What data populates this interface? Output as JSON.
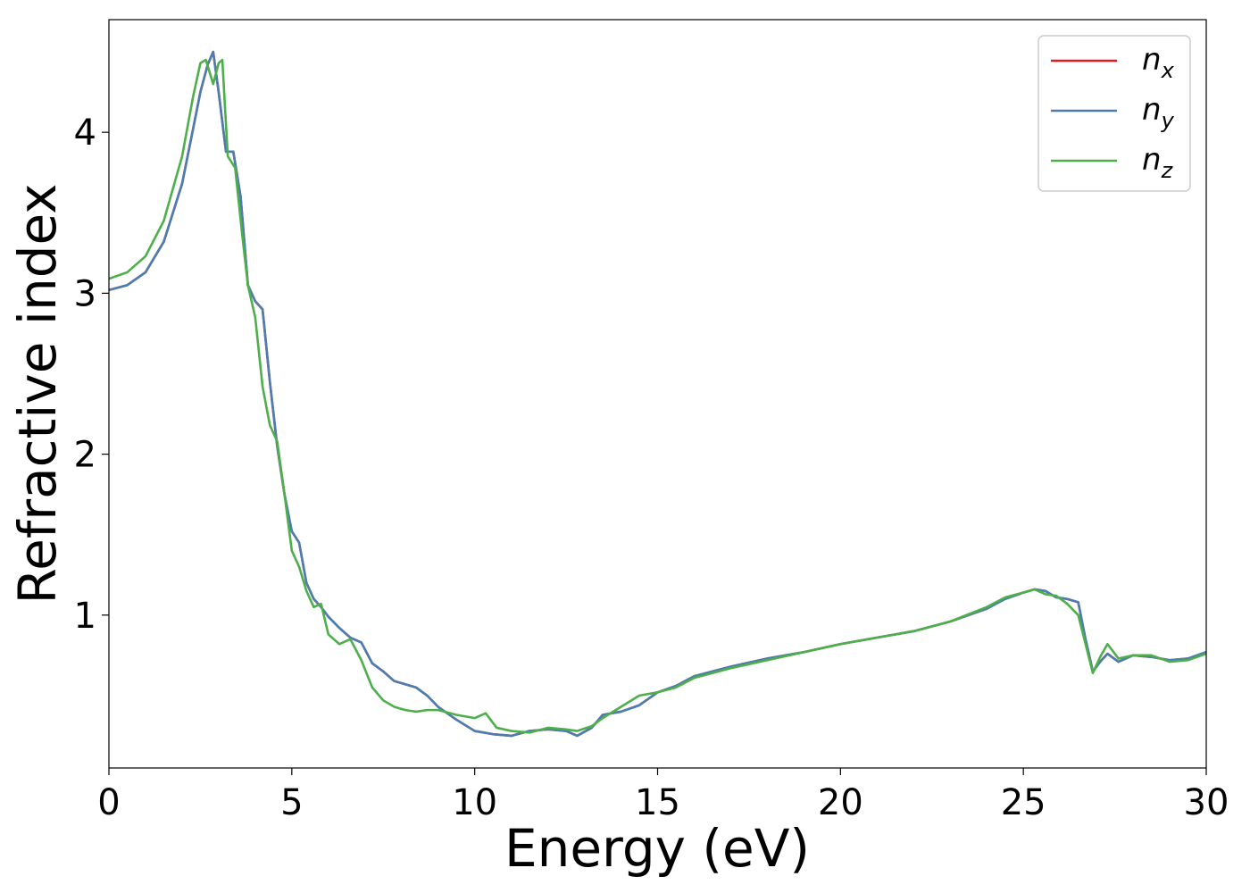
{
  "chart_data": {
    "type": "line",
    "xlabel": "Energy (eV)",
    "ylabel": "Refractive index",
    "xlim": [
      0,
      30
    ],
    "ylim": [
      0.05,
      4.7
    ],
    "xticks": [
      0,
      5,
      10,
      15,
      20,
      25,
      30
    ],
    "yticks": [
      1,
      2,
      3,
      4
    ],
    "grid": false,
    "legend_position": "top-right",
    "series": [
      {
        "name": "n_x",
        "legend_base": "n",
        "legend_sub": "x",
        "color": "#e41a1c",
        "x": [
          0,
          0.5,
          1.0,
          1.5,
          2.0,
          2.3,
          2.5,
          2.7,
          2.85,
          3.0,
          3.2,
          3.4,
          3.6,
          3.8,
          4.0,
          4.2,
          4.4,
          4.6,
          4.8,
          5.0,
          5.2,
          5.4,
          5.6,
          5.8,
          6.0,
          6.3,
          6.6,
          6.9,
          7.2,
          7.5,
          7.8,
          8.1,
          8.4,
          8.7,
          9.0,
          9.5,
          10.0,
          10.5,
          11.0,
          11.5,
          12.0,
          12.5,
          12.8,
          13.2,
          13.5,
          14.0,
          14.5,
          15.0,
          15.5,
          16.0,
          17.0,
          18.0,
          19.0,
          20.0,
          21.0,
          22.0,
          23.0,
          24.0,
          24.5,
          25.0,
          25.3,
          25.6,
          25.9,
          26.2,
          26.5,
          26.7,
          26.9,
          27.1,
          27.3,
          27.6,
          28.0,
          28.5,
          29.0,
          29.5,
          30.0
        ],
        "values": [
          3.02,
          3.05,
          3.13,
          3.32,
          3.68,
          4.02,
          4.25,
          4.42,
          4.5,
          4.25,
          3.88,
          3.88,
          3.6,
          3.05,
          2.95,
          2.9,
          2.45,
          2.05,
          1.75,
          1.52,
          1.45,
          1.2,
          1.1,
          1.05,
          0.99,
          0.92,
          0.86,
          0.83,
          0.7,
          0.65,
          0.59,
          0.57,
          0.55,
          0.5,
          0.43,
          0.35,
          0.28,
          0.26,
          0.25,
          0.28,
          0.29,
          0.28,
          0.25,
          0.3,
          0.38,
          0.4,
          0.44,
          0.52,
          0.56,
          0.62,
          0.68,
          0.73,
          0.77,
          0.82,
          0.86,
          0.9,
          0.96,
          1.04,
          1.1,
          1.14,
          1.16,
          1.15,
          1.11,
          1.1,
          1.08,
          0.85,
          0.65,
          0.71,
          0.76,
          0.71,
          0.75,
          0.74,
          0.72,
          0.73,
          0.77
        ]
      },
      {
        "name": "n_y",
        "legend_base": "n",
        "legend_sub": "y",
        "color": "#4a7eb3",
        "x": [
          0,
          0.5,
          1.0,
          1.5,
          2.0,
          2.3,
          2.5,
          2.7,
          2.85,
          3.0,
          3.2,
          3.4,
          3.6,
          3.8,
          4.0,
          4.2,
          4.4,
          4.6,
          4.8,
          5.0,
          5.2,
          5.4,
          5.6,
          5.8,
          6.0,
          6.3,
          6.6,
          6.9,
          7.2,
          7.5,
          7.8,
          8.1,
          8.4,
          8.7,
          9.0,
          9.5,
          10.0,
          10.5,
          11.0,
          11.5,
          12.0,
          12.5,
          12.8,
          13.2,
          13.5,
          14.0,
          14.5,
          15.0,
          15.5,
          16.0,
          17.0,
          18.0,
          19.0,
          20.0,
          21.0,
          22.0,
          23.0,
          24.0,
          24.5,
          25.0,
          25.3,
          25.6,
          25.9,
          26.2,
          26.5,
          26.7,
          26.9,
          27.1,
          27.3,
          27.6,
          28.0,
          28.5,
          29.0,
          29.5,
          30.0
        ],
        "values": [
          3.02,
          3.05,
          3.13,
          3.32,
          3.68,
          4.02,
          4.25,
          4.42,
          4.5,
          4.25,
          3.88,
          3.88,
          3.6,
          3.05,
          2.95,
          2.9,
          2.45,
          2.05,
          1.75,
          1.52,
          1.45,
          1.2,
          1.1,
          1.05,
          0.99,
          0.92,
          0.86,
          0.83,
          0.7,
          0.65,
          0.59,
          0.57,
          0.55,
          0.5,
          0.43,
          0.35,
          0.28,
          0.26,
          0.25,
          0.28,
          0.29,
          0.28,
          0.25,
          0.3,
          0.38,
          0.4,
          0.44,
          0.52,
          0.56,
          0.62,
          0.68,
          0.73,
          0.77,
          0.82,
          0.86,
          0.9,
          0.96,
          1.04,
          1.1,
          1.14,
          1.16,
          1.15,
          1.11,
          1.1,
          1.08,
          0.85,
          0.65,
          0.71,
          0.76,
          0.71,
          0.75,
          0.74,
          0.72,
          0.73,
          0.77
        ]
      },
      {
        "name": "n_z",
        "legend_base": "n",
        "legend_sub": "z",
        "color": "#4daf4a",
        "x": [
          0,
          0.5,
          1.0,
          1.5,
          2.0,
          2.3,
          2.5,
          2.65,
          2.85,
          3.0,
          3.1,
          3.25,
          3.45,
          3.65,
          3.8,
          4.0,
          4.2,
          4.4,
          4.6,
          4.8,
          5.0,
          5.2,
          5.4,
          5.6,
          5.8,
          6.0,
          6.3,
          6.6,
          6.9,
          7.2,
          7.5,
          7.8,
          8.1,
          8.4,
          8.7,
          9.0,
          9.5,
          10.0,
          10.3,
          10.6,
          11.0,
          11.5,
          12.0,
          12.5,
          12.8,
          13.2,
          13.5,
          14.0,
          14.5,
          15.0,
          15.5,
          16.0,
          17.0,
          18.0,
          19.0,
          20.0,
          21.0,
          22.0,
          23.0,
          24.0,
          24.5,
          25.0,
          25.3,
          25.6,
          25.9,
          26.2,
          26.5,
          26.7,
          26.9,
          27.1,
          27.3,
          27.6,
          28.0,
          28.5,
          29.0,
          29.5,
          30.0
        ],
        "values": [
          3.09,
          3.13,
          3.23,
          3.45,
          3.85,
          4.22,
          4.43,
          4.45,
          4.3,
          4.43,
          4.45,
          3.85,
          3.78,
          3.35,
          3.05,
          2.85,
          2.42,
          2.18,
          2.08,
          1.75,
          1.4,
          1.3,
          1.15,
          1.05,
          1.07,
          0.88,
          0.82,
          0.85,
          0.72,
          0.55,
          0.47,
          0.43,
          0.41,
          0.4,
          0.41,
          0.41,
          0.38,
          0.36,
          0.39,
          0.3,
          0.28,
          0.27,
          0.3,
          0.29,
          0.28,
          0.31,
          0.36,
          0.43,
          0.5,
          0.52,
          0.55,
          0.61,
          0.67,
          0.72,
          0.77,
          0.82,
          0.86,
          0.9,
          0.96,
          1.05,
          1.11,
          1.14,
          1.16,
          1.13,
          1.12,
          1.07,
          1.0,
          0.82,
          0.64,
          0.74,
          0.82,
          0.73,
          0.75,
          0.75,
          0.71,
          0.72,
          0.76
        ]
      }
    ]
  }
}
